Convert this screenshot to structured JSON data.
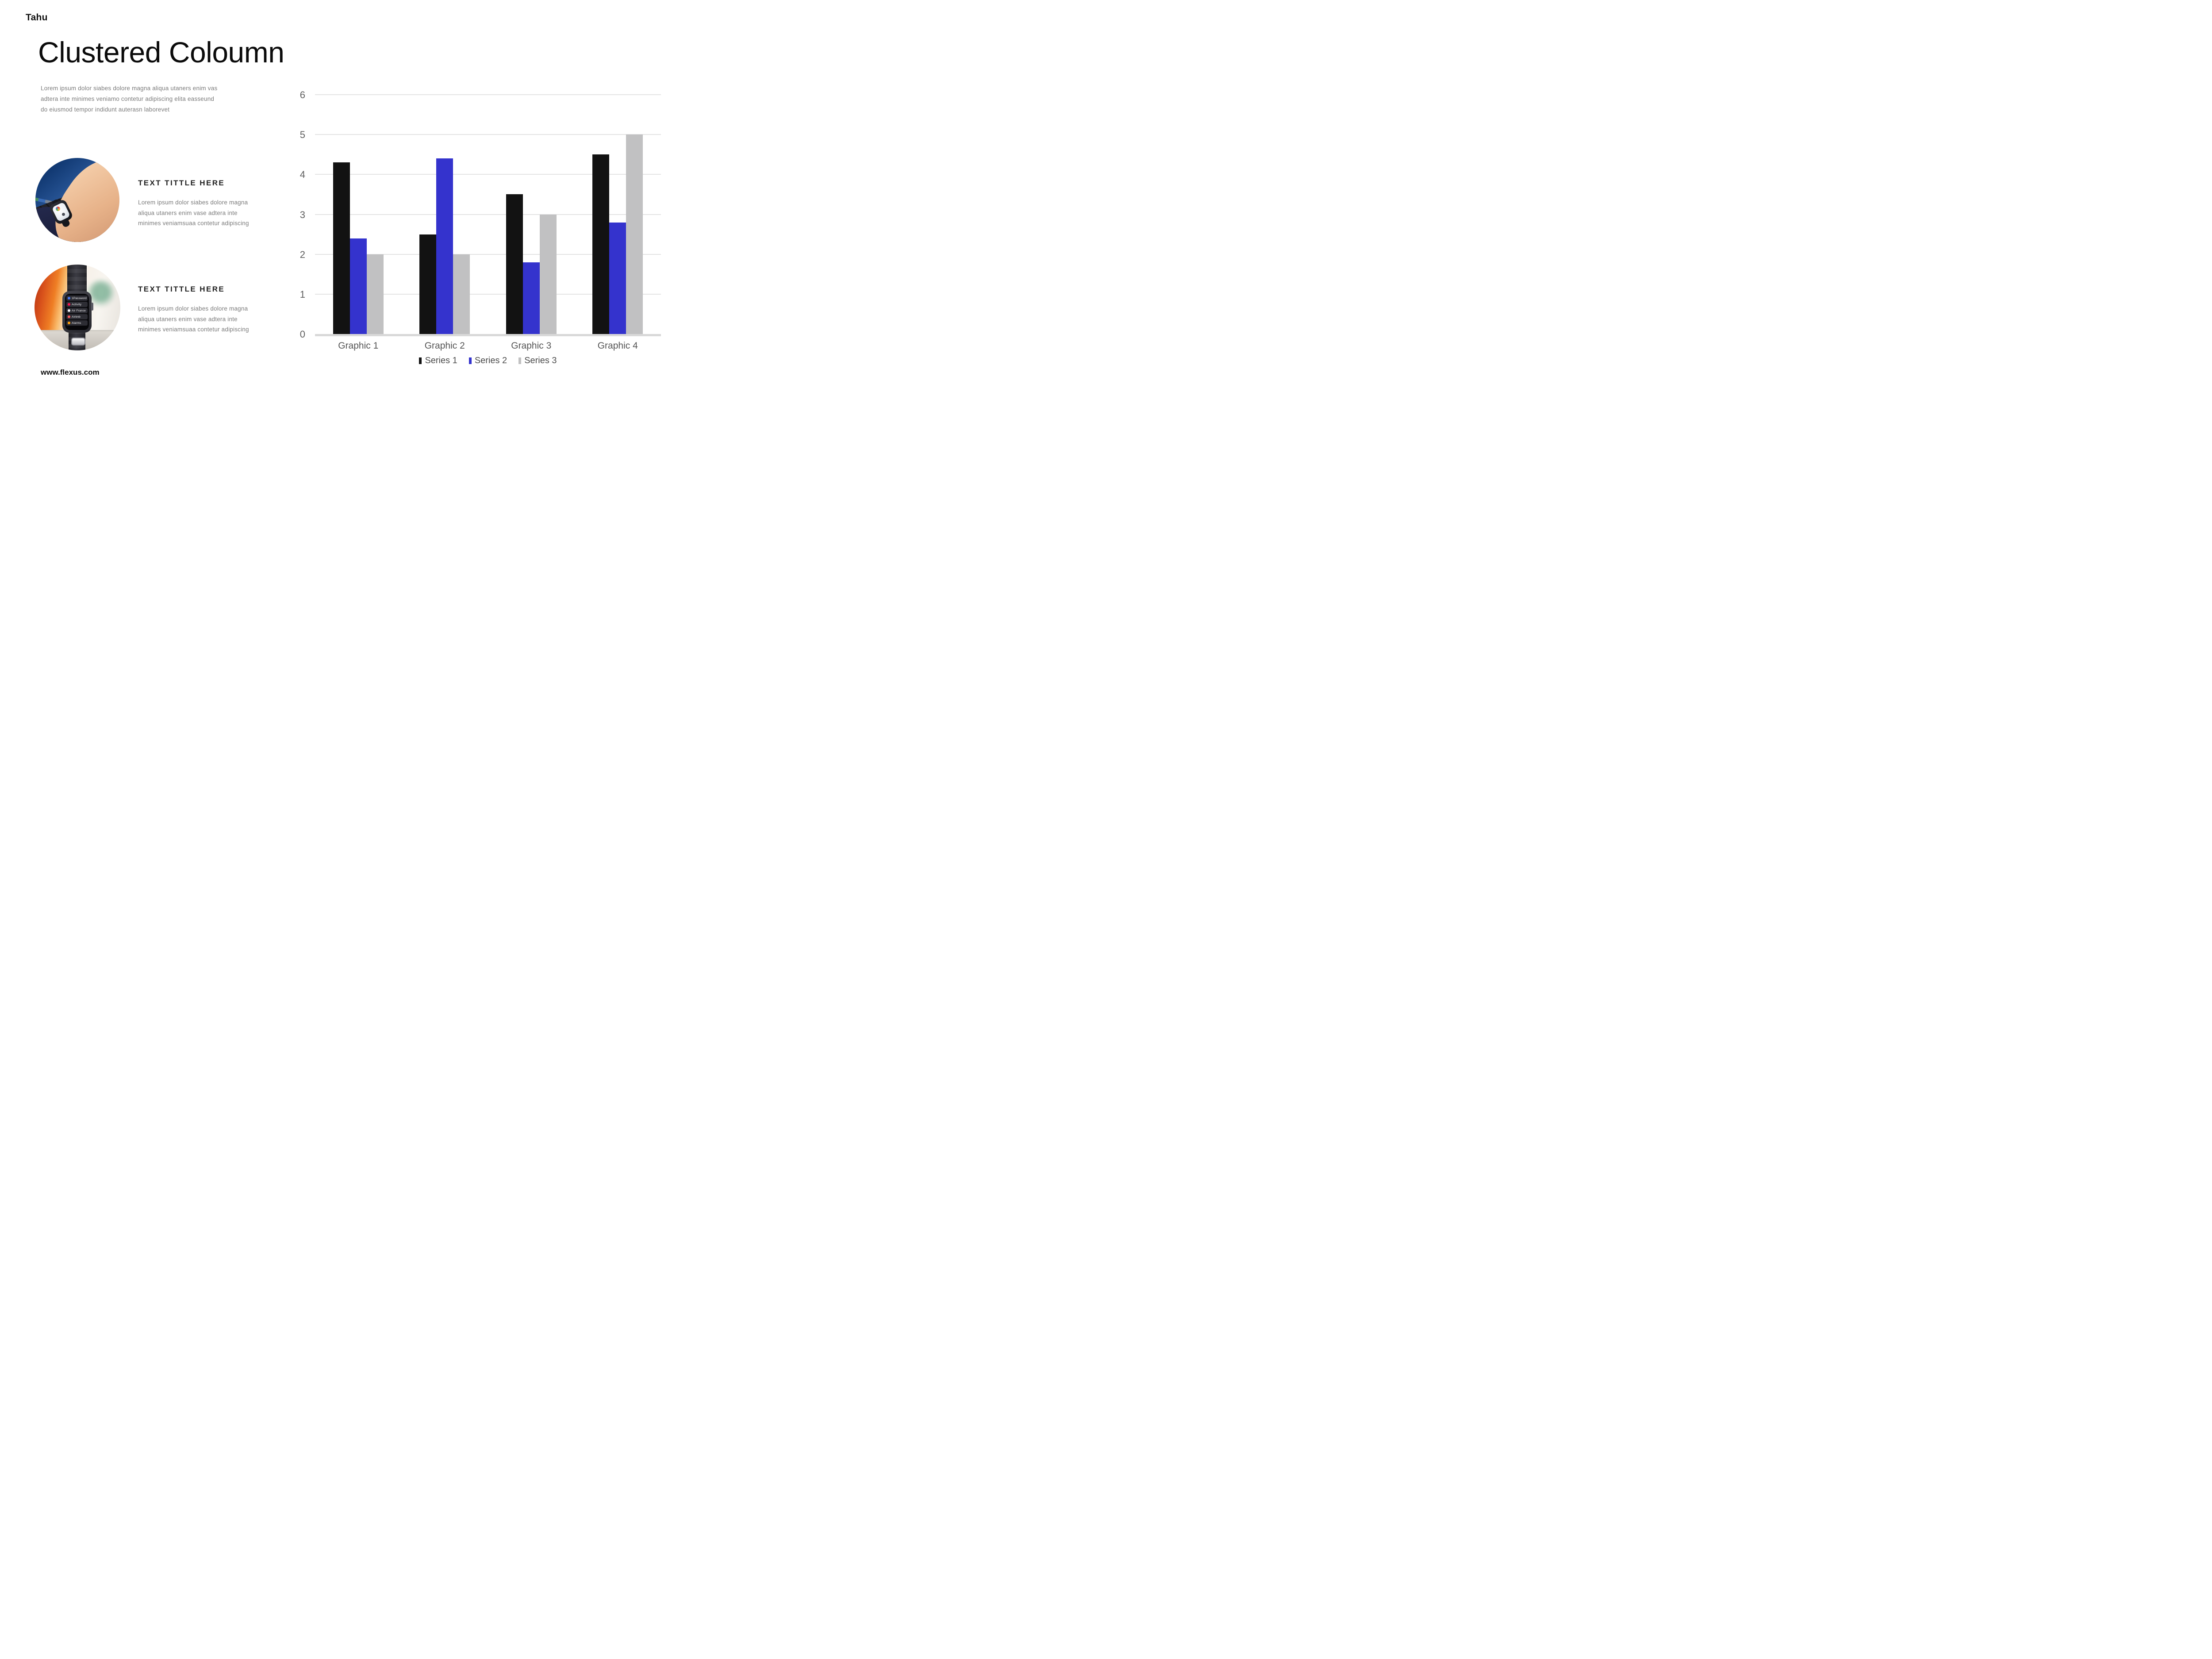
{
  "brand": "Tahu",
  "page": {
    "title": "Clustered Coloumn",
    "intro": "Lorem ipsum dolor siabes dolore magna aliqua utaners enim vas adtera inte minimes veniamo contetur adipiscing elita easseund do eiusmod tempor indidunt auterasn laborevet",
    "footer_url": "www.flexus.com"
  },
  "features": [
    {
      "title": "TEXT TITTLE HERE",
      "body": "Lorem ipsum dolor siabes dolore magna aliqua utaners enim vase adtera inte minimes veniamsuaa contetur adipiscing",
      "image_alt": "apple-watch-on-wrist-in-front-of-laptop-photo"
    },
    {
      "title": "TEXT TITTLE HERE",
      "body": "Lorem ipsum dolor siabes dolore magna aliqua utaners enim vase adtera inte minimes veniamsuaa contetur adipiscing",
      "image_alt": "apple-watch-standing-with-app-list-photo",
      "watch_apps": [
        {
          "name": "1Password",
          "color": "#4a7bf7"
        },
        {
          "name": "Activity",
          "color": "#fa1150"
        },
        {
          "name": "Air France",
          "color": "#f2f3f7"
        },
        {
          "name": "Airbnb",
          "color": "#ff5a5f"
        },
        {
          "name": "Alarms",
          "color": "#ff9f0a"
        }
      ]
    }
  ],
  "chart_data": {
    "type": "bar",
    "title": "",
    "xlabel": "",
    "ylabel": "",
    "categories": [
      "Graphic 1",
      "Graphic 2",
      "Graphic 3",
      "Graphic 4"
    ],
    "series": [
      {
        "name": "Series 1",
        "color": "#121212",
        "values": [
          4.3,
          2.5,
          3.5,
          4.5
        ]
      },
      {
        "name": "Series 2",
        "color": "#3433cd",
        "values": [
          2.4,
          4.4,
          1.8,
          2.8
        ]
      },
      {
        "name": "Series 3",
        "color": "#c1c1c2",
        "values": [
          2.0,
          2.0,
          3.0,
          5.0
        ]
      }
    ],
    "ylim": [
      0,
      6
    ],
    "yticks": [
      0,
      1,
      2,
      3,
      4,
      5,
      6
    ],
    "grid": true,
    "legend_position": "bottom"
  },
  "colors": {
    "background": "#ffffff",
    "text_primary": "#0b0b0b",
    "text_muted": "#7b7b7b",
    "gridline": "#e4e4e4",
    "baseline": "#d8d8d8",
    "axis_text": "#5e5e5e"
  }
}
